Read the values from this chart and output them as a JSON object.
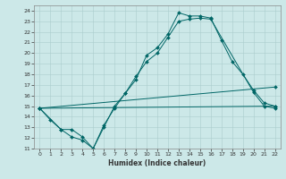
{
  "xlabel": "Humidex (Indice chaleur)",
  "xlim": [
    -0.5,
    22.5
  ],
  "ylim": [
    11,
    24.5
  ],
  "xticks": [
    0,
    1,
    2,
    3,
    4,
    5,
    6,
    7,
    8,
    9,
    10,
    11,
    12,
    13,
    14,
    15,
    16,
    17,
    18,
    19,
    20,
    21,
    22
  ],
  "yticks": [
    11,
    12,
    13,
    14,
    15,
    16,
    17,
    18,
    19,
    20,
    21,
    22,
    23,
    24
  ],
  "background_color": "#cce8e8",
  "grid_color": "#aacccc",
  "line_color": "#006666",
  "line1_x": [
    0,
    1,
    2,
    3,
    4,
    5,
    6,
    7,
    8,
    9,
    10,
    11,
    12,
    13,
    14,
    15,
    16,
    17,
    18,
    19,
    20,
    21,
    22
  ],
  "line1_y": [
    14.8,
    13.7,
    12.8,
    12.1,
    11.8,
    11.0,
    13.0,
    15.0,
    16.2,
    17.5,
    19.8,
    20.5,
    21.8,
    23.8,
    23.5,
    23.5,
    23.3,
    21.2,
    19.2,
    18.0,
    16.5,
    15.3,
    15.0
  ],
  "line2_x": [
    0,
    2,
    3,
    4,
    5,
    6,
    7,
    8,
    9,
    10,
    11,
    12,
    13,
    14,
    15,
    16,
    20,
    21,
    22
  ],
  "line2_y": [
    14.8,
    12.8,
    12.8,
    12.1,
    11.0,
    13.2,
    14.8,
    16.2,
    17.8,
    19.2,
    20.0,
    21.5,
    23.0,
    23.2,
    23.3,
    23.2,
    16.3,
    15.0,
    14.8
  ],
  "line3_x": [
    0,
    22
  ],
  "line3_y": [
    14.8,
    16.8
  ],
  "line4_x": [
    0,
    22
  ],
  "line4_y": [
    14.8,
    15.0
  ]
}
